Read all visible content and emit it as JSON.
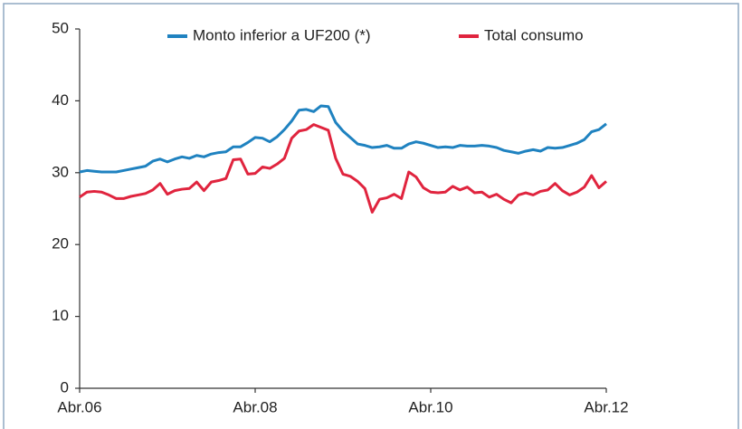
{
  "chart_data": {
    "type": "line",
    "categories": [
      "Abr.06",
      null,
      null,
      null,
      null,
      null,
      null,
      null,
      null,
      null,
      null,
      null,
      null,
      null,
      null,
      null,
      null,
      null,
      null,
      null,
      null,
      null,
      null,
      null,
      "Abr.08",
      null,
      null,
      null,
      null,
      null,
      null,
      null,
      null,
      null,
      null,
      null,
      null,
      null,
      null,
      null,
      null,
      null,
      null,
      null,
      null,
      null,
      null,
      null,
      "Abr.10",
      null,
      null,
      null,
      null,
      null,
      null,
      null,
      null,
      null,
      null,
      null,
      null,
      null,
      null,
      null,
      null,
      null,
      null,
      null,
      null,
      null,
      null,
      null,
      "Abr.12"
    ],
    "series": [
      {
        "name": "Monto inferior a UF200 (*)",
        "color": "#1f82c0",
        "values": [
          30.1,
          30.3,
          30.2,
          30.1,
          30.1,
          30.1,
          30.3,
          30.5,
          30.7,
          30.9,
          31.6,
          31.9,
          31.5,
          31.9,
          32.2,
          32.0,
          32.4,
          32.2,
          32.6,
          32.8,
          32.9,
          33.6,
          33.6,
          34.2,
          34.9,
          34.8,
          34.3,
          35.0,
          36.0,
          37.2,
          38.7,
          38.8,
          38.5,
          39.3,
          39.2,
          37.0,
          35.8,
          34.9,
          34.0,
          33.8,
          33.5,
          33.6,
          33.8,
          33.4,
          33.4,
          34.0,
          34.3,
          34.1,
          33.8,
          33.5,
          33.6,
          33.5,
          33.8,
          33.7,
          33.7,
          33.8,
          33.7,
          33.5,
          33.1,
          32.9,
          32.7,
          33.0,
          33.2,
          33.0,
          33.5,
          33.4,
          33.5,
          33.8,
          34.1,
          34.6,
          35.7,
          36.0,
          36.8
        ]
      },
      {
        "name": "Total consumo",
        "color": "#e0243e",
        "values": [
          26.6,
          27.3,
          27.4,
          27.3,
          26.9,
          26.4,
          26.4,
          26.7,
          26.9,
          27.1,
          27.6,
          28.5,
          27.0,
          27.5,
          27.7,
          27.8,
          28.7,
          27.5,
          28.7,
          28.9,
          29.2,
          31.8,
          31.9,
          29.8,
          29.9,
          30.8,
          30.6,
          31.2,
          32.0,
          34.8,
          35.8,
          36.0,
          36.7,
          36.3,
          35.9,
          32.0,
          29.8,
          29.5,
          28.8,
          27.8,
          24.5,
          26.3,
          26.5,
          27.0,
          26.4,
          30.1,
          29.4,
          27.9,
          27.3,
          27.2,
          27.3,
          28.1,
          27.6,
          28.0,
          27.2,
          27.3,
          26.6,
          27.0,
          26.3,
          25.8,
          26.9,
          27.2,
          26.9,
          27.4,
          27.6,
          28.5,
          27.5,
          26.9,
          27.3,
          28.0,
          29.6,
          27.9,
          28.8
        ]
      }
    ],
    "ylim": [
      0,
      50
    ],
    "yticks": [
      0,
      10,
      20,
      30,
      40,
      50
    ],
    "grid": false,
    "legend": "top"
  }
}
